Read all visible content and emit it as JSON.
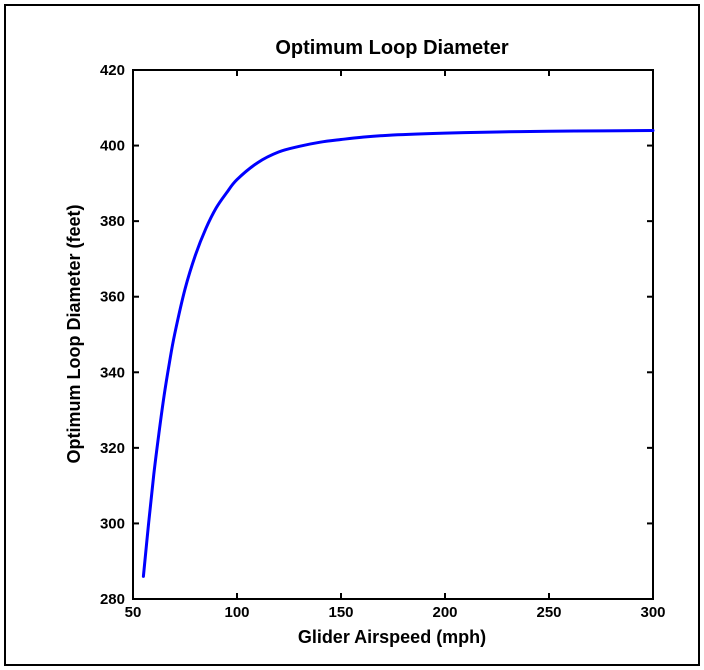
{
  "chart_data": {
    "type": "line",
    "title": "Optimum Loop Diameter",
    "xlabel": "Glider Airspeed (mph)",
    "ylabel": "Optimum Loop Diameter (feet)",
    "xlim": [
      50,
      300
    ],
    "ylim": [
      280,
      420
    ],
    "xticks": [
      50,
      100,
      150,
      200,
      250,
      300
    ],
    "yticks": [
      280,
      300,
      320,
      340,
      360,
      380,
      400,
      420
    ],
    "grid": false,
    "series": [
      {
        "color": "#0000ff",
        "x": [
          55,
          57.5,
          60,
          62.5,
          65,
          67.5,
          70,
          75,
          80,
          85,
          90,
          95,
          100,
          110,
          120,
          130,
          140,
          150,
          160,
          175,
          200,
          225,
          250,
          275,
          300
        ],
        "y": [
          286,
          300,
          313,
          324,
          334,
          342.5,
          350,
          362,
          371,
          378,
          383.5,
          387.5,
          391,
          395.5,
          398.3,
          399.8,
          400.9,
          401.6,
          402.2,
          402.8,
          403.3,
          403.6,
          403.8,
          403.9,
          404
        ]
      }
    ]
  }
}
